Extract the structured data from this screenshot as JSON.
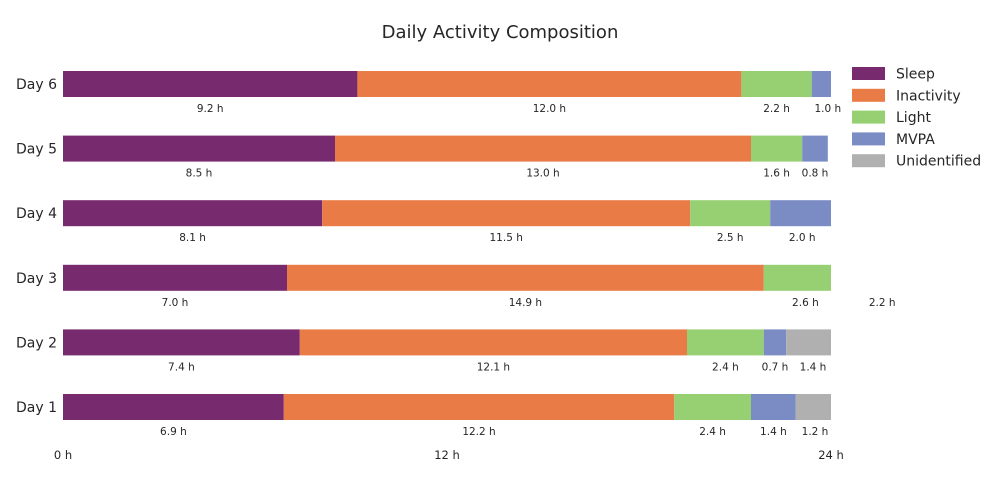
{
  "chart_data": {
    "type": "bar",
    "orientation": "horizontal",
    "stacked": true,
    "title": "Daily Activity Composition",
    "xlabel": "",
    "ylabel": "",
    "xlim": [
      0,
      24
    ],
    "xticks": [
      {
        "value": 0,
        "label": "0 h"
      },
      {
        "value": 12,
        "label": "12 h"
      },
      {
        "value": 24,
        "label": "24 h"
      }
    ],
    "grid": false,
    "legend_position": "top-right",
    "categories": [
      "Day 1",
      "Day 2",
      "Day 3",
      "Day 4",
      "Day 5",
      "Day 6"
    ],
    "series": [
      {
        "name": "Sleep",
        "color": "#782a6e",
        "values": [
          6.9,
          7.4,
          7.0,
          8.1,
          8.5,
          9.2
        ],
        "labels": [
          "6.9 h",
          "7.4 h",
          "7.0 h",
          "8.1 h",
          "8.5 h",
          "9.2 h"
        ]
      },
      {
        "name": "Inactivity",
        "color": "#e87b46",
        "values": [
          12.2,
          12.1,
          14.9,
          11.5,
          13.0,
          12.0
        ],
        "labels": [
          "12.2 h",
          "12.1 h",
          "14.9 h",
          "11.5 h",
          "13.0 h",
          "12.0 h"
        ]
      },
      {
        "name": "Light",
        "color": "#96d072",
        "values": [
          2.4,
          2.4,
          2.6,
          2.5,
          1.6,
          2.2
        ],
        "labels": [
          "2.4 h",
          "2.4 h",
          "2.6 h",
          "2.5 h",
          "1.6 h",
          "2.2 h"
        ]
      },
      {
        "name": "MVPA",
        "color": "#7b8bc4",
        "values": [
          1.4,
          0.7,
          2.2,
          2.0,
          0.8,
          1.0
        ],
        "labels": [
          "1.4 h",
          "0.7 h",
          "2.2 h",
          "2.0 h",
          "0.8 h",
          "1.0 h"
        ]
      },
      {
        "name": "Unidentified",
        "color": "#b0b0b0",
        "values": [
          1.2,
          1.4,
          0,
          0,
          0,
          0
        ],
        "labels": [
          "1.2 h",
          "1.4 h",
          "",
          "",
          "",
          ""
        ]
      }
    ]
  }
}
